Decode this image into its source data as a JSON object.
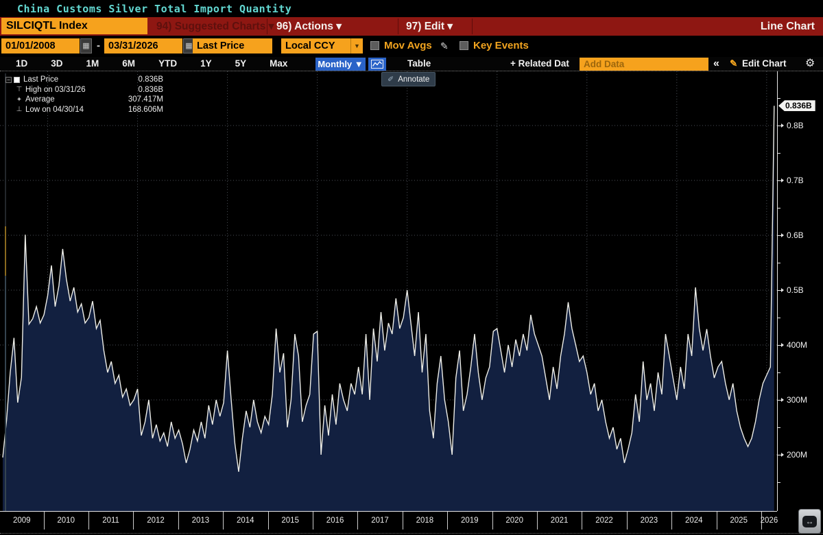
{
  "title_bar": {
    "text": "China Customs Silver Total Import Quantity"
  },
  "menu": {
    "ticker": "SILCIQTL Index",
    "items": [
      {
        "label": "94) Suggested Charts ▾",
        "enabled": false
      },
      {
        "label": "96) Actions ▾",
        "enabled": true
      },
      {
        "label": "97) Edit ▾",
        "enabled": true
      }
    ],
    "chart_type": "Line Chart"
  },
  "toolbar": {
    "date_from": "01/01/2008",
    "dash": "-",
    "date_to": "03/31/2026",
    "price_field": "Last Price",
    "ccy_field": "Local CCY",
    "mov_avgs": "Mov Avgs",
    "key_events": "Key Events"
  },
  "toolbar2": {
    "period_tabs": [
      "1D",
      "3D",
      "1M",
      "6M",
      "YTD",
      "1Y",
      "5Y",
      "Max"
    ],
    "monthly": "Monthly ▼",
    "table": "Table",
    "related": "+ Related Dat",
    "add_data_placeholder": "Add Data",
    "collapse": "«",
    "edit_chart": "Edit Chart"
  },
  "icons": {
    "calendar": "▦",
    "down_arrow": "▼",
    "pencil": "✎",
    "gear": "⚙",
    "annotate": "✐",
    "expander": "−",
    "high_marker": "⊤",
    "avg_marker": "✦",
    "low_marker": "⊥",
    "pan_arrows": "↔"
  },
  "chart": {
    "annotate_label": "Annotate",
    "legend": {
      "rows": [
        {
          "glyph": "square",
          "label": "Last Price",
          "value": "0.836B"
        },
        {
          "glyph": "high",
          "label": "High on 03/31/26",
          "value": "0.836B"
        },
        {
          "glyph": "avg",
          "label": "Average",
          "value": "307.417M"
        },
        {
          "glyph": "low",
          "label": "Low on 04/30/14",
          "value": "168.606M"
        }
      ]
    },
    "colors": {
      "line": "#eeeee8",
      "area_fill": "#122040",
      "grid": "#4b5158",
      "amber": "#f6a21d",
      "red_bar": "#8e1712",
      "blue_btn": "#2a63c8",
      "teal_title": "#63d8d2",
      "edge_gold": "#8a6a1e",
      "edge_slate": "#35444f"
    }
  },
  "chart_data": {
    "type": "area",
    "title": "China Customs Silver Total Import Quantity",
    "series_name": "Last Price",
    "frequency": "monthly",
    "start": "2009-01",
    "end": "2026-03",
    "unit": "millions",
    "values_m": [
      195,
      262,
      350,
      413,
      295,
      341,
      601,
      438,
      448,
      470,
      440,
      455,
      490,
      545,
      470,
      508,
      575,
      520,
      480,
      505,
      460,
      475,
      440,
      450,
      480,
      430,
      445,
      390,
      350,
      370,
      330,
      345,
      305,
      320,
      290,
      300,
      320,
      235,
      260,
      300,
      230,
      255,
      225,
      240,
      215,
      260,
      230,
      245,
      220,
      185,
      210,
      245,
      225,
      260,
      230,
      290,
      255,
      300,
      270,
      295,
      390,
      300,
      220,
      169,
      230,
      280,
      250,
      300,
      260,
      240,
      270,
      255,
      310,
      430,
      350,
      385,
      250,
      300,
      420,
      380,
      260,
      290,
      310,
      420,
      425,
      200,
      290,
      235,
      310,
      255,
      330,
      300,
      280,
      330,
      310,
      360,
      310,
      420,
      300,
      430,
      370,
      460,
      390,
      440,
      420,
      485,
      430,
      450,
      500,
      440,
      380,
      460,
      350,
      420,
      280,
      230,
      330,
      380,
      300,
      260,
      200,
      340,
      390,
      280,
      310,
      360,
      420,
      350,
      300,
      340,
      360,
      425,
      430,
      390,
      350,
      400,
      360,
      410,
      380,
      420,
      390,
      455,
      420,
      400,
      380,
      340,
      300,
      360,
      320,
      380,
      420,
      478,
      430,
      400,
      370,
      380,
      350,
      310,
      330,
      280,
      300,
      260,
      230,
      250,
      210,
      230,
      185,
      210,
      240,
      310,
      260,
      370,
      300,
      330,
      280,
      350,
      310,
      420,
      380,
      340,
      300,
      360,
      320,
      420,
      380,
      505,
      430,
      390,
      429,
      380,
      340,
      360,
      370,
      330,
      300,
      330,
      280,
      250,
      230,
      215,
      230,
      260,
      300,
      330,
      345,
      360,
      836
    ],
    "stats": {
      "last_label": "0.836B",
      "last_value_m": 836,
      "high_date": "03/31/26",
      "high_value_m": 836,
      "average_m": 307.417,
      "low_date": "04/30/14",
      "low_value_m": 168.606
    },
    "y_axis": {
      "side": "right",
      "major": [
        {
          "value": 800,
          "label": "0.8B"
        },
        {
          "value": 700,
          "label": "0.7B"
        },
        {
          "value": 600,
          "label": "0.6B"
        },
        {
          "value": 500,
          "label": "0.5B"
        },
        {
          "value": 400,
          "label": "400M"
        },
        {
          "value": 300,
          "label": "300M"
        },
        {
          "value": 200,
          "label": "200M"
        }
      ],
      "minor": [
        850,
        750,
        650,
        550,
        450,
        350,
        250,
        150
      ]
    },
    "x_axis": {
      "years": [
        "2009",
        "2010",
        "2011",
        "2012",
        "2013",
        "2014",
        "2015",
        "2016",
        "2017",
        "2018",
        "2019",
        "2020",
        "2021",
        "2022",
        "2023",
        "2024",
        "2025",
        "2026"
      ],
      "gridline_every_years": 2
    },
    "grid": true,
    "legend_position": "top-left"
  }
}
